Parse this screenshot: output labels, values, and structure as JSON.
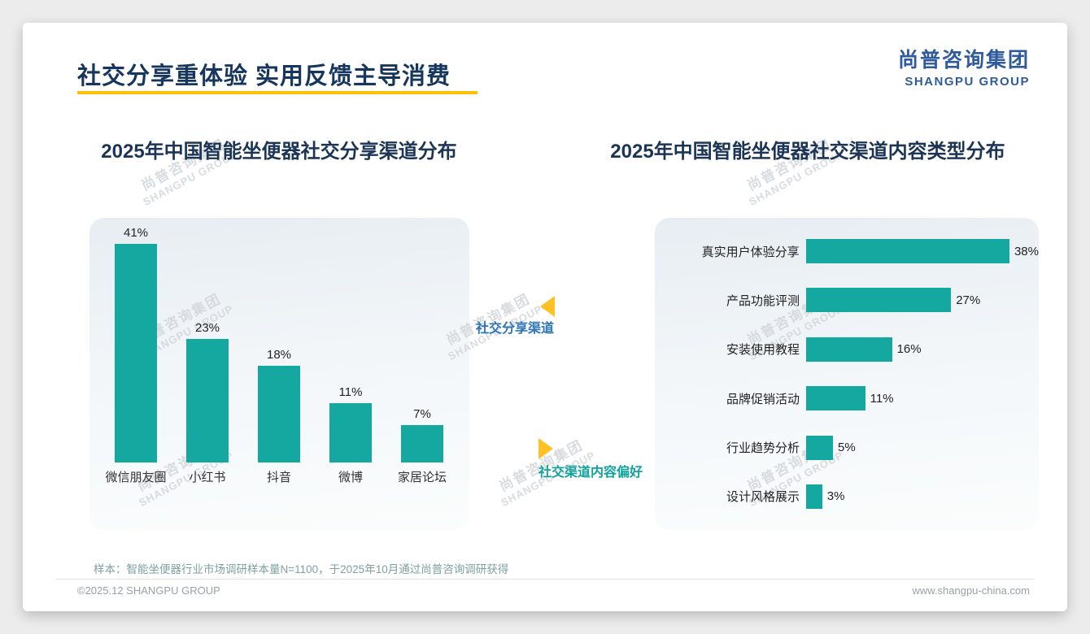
{
  "page": {
    "title": "社交分享重体验 实用反馈主导消费",
    "logo_cn": "尚普咨询集团",
    "logo_en": "SHANGPU GROUP",
    "watermark_cn": "尚普咨询集团",
    "watermark_en": "SHANGPU GROUP",
    "sample_note": "样本：智能坐便器行业市场调研样本量N=1100，于2025年10月通过尚普咨询调研获得",
    "footer_left": "©2025.12 SHANGPU GROUP",
    "footer_right": "www.shangpu-china.com"
  },
  "annotations": {
    "left_label": "社交分享渠道",
    "right_label": "社交渠道内容偏好",
    "left_color": "#2E75B6",
    "right_color": "#12A29B",
    "arrow_color": "#FFC226"
  },
  "colors": {
    "bar_teal": "#14A8A0",
    "title_navy": "#17365D",
    "underline_yellow": "#FFC000",
    "logo_navy": "#2F5B9E"
  },
  "chart_data": [
    {
      "type": "bar",
      "title": "2025年中国智能坐便器社交分享渠道分布",
      "categories": [
        "微信朋友圈",
        "小红书",
        "抖音",
        "微博",
        "家居论坛"
      ],
      "values": [
        41,
        23,
        18,
        11,
        7
      ],
      "unit": "%",
      "bar_color": "#14A8A0",
      "ylim": [
        0,
        45
      ],
      "grid": false,
      "legend": "none"
    },
    {
      "type": "bar",
      "orientation": "horizontal",
      "title": "2025年中国智能坐便器社交渠道内容类型分布",
      "categories": [
        "真实用户体验分享",
        "产品功能评测",
        "安装使用教程",
        "品牌促销活动",
        "行业趋势分析",
        "设计风格展示"
      ],
      "values": [
        38,
        27,
        16,
        11,
        5,
        3
      ],
      "unit": "%",
      "bar_color": "#14A8A0",
      "xlim": [
        0,
        40
      ],
      "grid": false,
      "legend": "none"
    }
  ]
}
